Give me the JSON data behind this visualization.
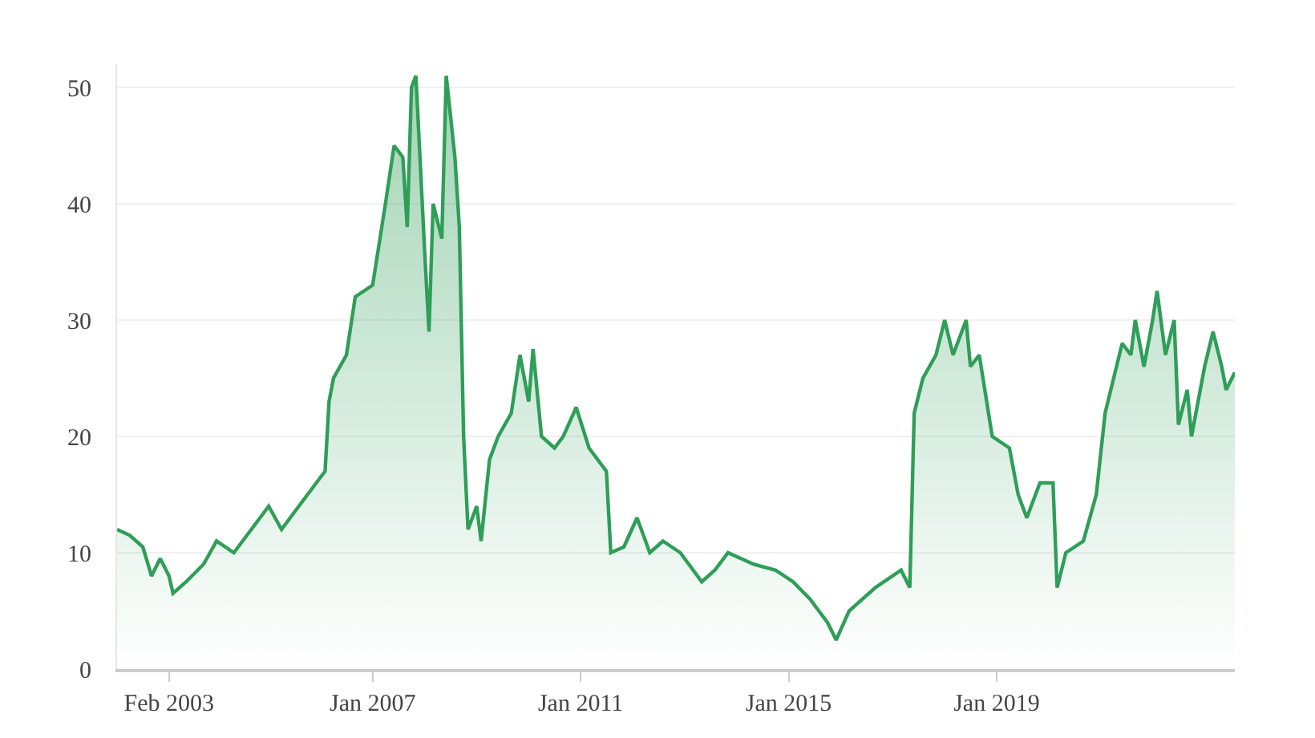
{
  "chart_data": {
    "type": "area",
    "x": [
      "2002-02",
      "2002-05",
      "2002-08",
      "2002-10",
      "2002-12",
      "2003-02",
      "2003-03",
      "2003-06",
      "2003-10",
      "2004-01",
      "2004-05",
      "2004-09",
      "2005-01",
      "2005-04",
      "2005-08",
      "2006-01",
      "2006-02",
      "2006-03",
      "2006-04",
      "2006-07",
      "2006-09",
      "2007-01",
      "2007-04",
      "2007-06",
      "2007-08",
      "2007-09",
      "2007-10",
      "2007-11",
      "2008-01",
      "2008-02",
      "2008-03",
      "2008-05",
      "2008-06",
      "2008-08",
      "2008-09",
      "2008-10",
      "2008-11",
      "2009-01",
      "2009-02",
      "2009-04",
      "2009-06",
      "2009-09",
      "2009-11",
      "2010-01",
      "2010-02",
      "2010-04",
      "2010-07",
      "2010-09",
      "2010-12",
      "2011-03",
      "2011-07",
      "2011-08",
      "2011-11",
      "2012-02",
      "2012-05",
      "2012-08",
      "2012-12",
      "2013-05",
      "2013-08",
      "2013-11",
      "2014-05",
      "2014-10",
      "2015-02",
      "2015-06",
      "2015-10",
      "2015-12",
      "2016-03",
      "2016-09",
      "2017-03",
      "2017-05",
      "2017-06",
      "2017-08",
      "2017-11",
      "2018-01",
      "2018-03",
      "2018-06",
      "2018-07",
      "2018-09",
      "2018-12",
      "2019-04",
      "2019-06",
      "2019-08",
      "2019-11",
      "2020-02",
      "2020-03",
      "2020-05",
      "2020-09",
      "2020-12",
      "2021-02",
      "2021-06",
      "2021-08",
      "2021-09",
      "2021-11",
      "2022-01",
      "2022-02",
      "2022-04",
      "2022-06",
      "2022-07",
      "2022-09",
      "2022-10",
      "2023-01",
      "2023-03",
      "2023-05",
      "2023-06",
      "2023-08"
    ],
    "series": [
      {
        "color": "#2f9e58",
        "values": [
          12,
          11.5,
          10.5,
          8,
          9.5,
          8,
          6.5,
          7.5,
          9,
          11,
          10,
          12,
          14,
          12,
          14,
          16.5,
          17,
          23,
          25,
          27,
          32,
          33,
          40,
          45,
          44,
          38,
          50,
          51,
          36,
          29,
          40,
          37,
          51,
          44,
          38,
          20,
          12,
          14,
          11,
          18,
          20,
          22,
          27,
          23,
          27.5,
          20,
          19,
          20,
          22.5,
          19,
          17,
          10,
          10.5,
          13,
          10,
          11,
          10,
          7.5,
          8.5,
          10,
          9,
          8.5,
          7.5,
          6,
          4,
          2.5,
          5,
          7,
          8.5,
          7,
          22,
          25,
          27,
          30,
          27,
          30,
          26,
          27,
          20,
          19,
          15,
          13,
          16,
          16,
          7,
          10,
          11,
          15,
          22,
          28,
          27,
          30,
          26,
          30,
          32.5,
          27,
          30,
          21,
          24,
          20,
          26,
          29,
          26,
          24,
          25.5
        ]
      }
    ],
    "xlim": [
      "2002-02",
      "2023-08"
    ],
    "xticks": [
      {
        "value": "2003-02",
        "label": "Feb 2003"
      },
      {
        "value": "2007-01",
        "label": "Jan 2007"
      },
      {
        "value": "2011-01",
        "label": "Jan 2011"
      },
      {
        "value": "2015-01",
        "label": "Jan 2015"
      },
      {
        "value": "2019-01",
        "label": "Jan 2019"
      }
    ],
    "ylim": [
      0,
      52
    ],
    "yticks": [
      0,
      10,
      20,
      30,
      40,
      50
    ],
    "grid": "y",
    "marker": "none",
    "line_style": "solid"
  }
}
